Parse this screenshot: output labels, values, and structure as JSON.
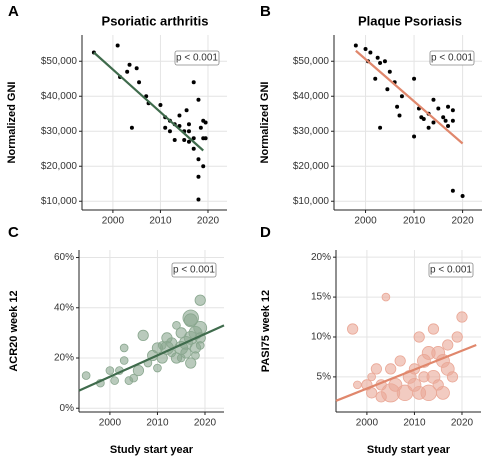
{
  "chart_data": [
    {
      "type": "scatter",
      "panel_label": "A",
      "title": "Psoriatic arthritis",
      "y_label": "Normalized GNI",
      "annotation": "p < 0.001",
      "xlim": [
        1993.5,
        2024
      ],
      "xticks": [
        2000,
        2010,
        2020
      ],
      "ylim": [
        7500,
        57500
      ],
      "yticks": [
        {
          "value": 10000,
          "label": "$10,000"
        },
        {
          "value": 20000,
          "label": "$20,000"
        },
        {
          "value": 30000,
          "label": "$30,000"
        },
        {
          "value": 40000,
          "label": "$40,000"
        },
        {
          "value": 50000,
          "label": "$50,000"
        }
      ],
      "grid": true,
      "series": [
        {
          "color": "#000000",
          "x": [
            1996,
            2001,
            2001.5,
            2003,
            2003.5,
            2004,
            2005,
            2005.5,
            2007,
            2007.5,
            2010,
            2011,
            2011,
            2012,
            2012,
            2013,
            2013,
            2014,
            2014,
            2015,
            2015,
            2015.5,
            2016,
            2016,
            2016,
            2017,
            2017,
            2017,
            2018,
            2018,
            2018,
            2018,
            2018.5,
            2019,
            2019,
            2019,
            2019.5,
            2019.5
          ],
          "values": [
            52500,
            54500,
            45500,
            47000,
            49000,
            31000,
            48000,
            44000,
            40000,
            38000,
            37500,
            34000,
            31000,
            33000,
            30000,
            32000,
            27500,
            31500,
            34500,
            30000,
            27500,
            36000,
            32000,
            30000,
            27000,
            44000,
            28000,
            25000,
            39000,
            22000,
            17000,
            10500,
            31000,
            33000,
            28000,
            20000,
            32500,
            28000
          ]
        }
      ],
      "trend": {
        "color": "#3f6b4c",
        "x": [
          1996,
          2019
        ],
        "values": [
          52500,
          24500
        ]
      }
    },
    {
      "type": "scatter",
      "panel_label": "B",
      "title": "Plaque Psoriasis",
      "y_label": "Normalized GNI",
      "annotation": "p < 0.001",
      "xlim": [
        1993.5,
        2024
      ],
      "xticks": [
        2000,
        2010,
        2020
      ],
      "ylim": [
        7500,
        57500
      ],
      "yticks": [
        {
          "value": 10000,
          "label": "$10,000"
        },
        {
          "value": 20000,
          "label": "$20,000"
        },
        {
          "value": 30000,
          "label": "$30,000"
        },
        {
          "value": 40000,
          "label": "$40,000"
        },
        {
          "value": 50000,
          "label": "$50,000"
        }
      ],
      "grid": true,
      "series": [
        {
          "color": "#000000",
          "x": [
            1998,
            2000,
            2000.5,
            2001,
            2002,
            2002.5,
            2003,
            2003,
            2004,
            2004.5,
            2005,
            2006,
            2006.5,
            2007,
            2007.5,
            2010,
            2010,
            2011,
            2011.5,
            2012,
            2013,
            2013,
            2014,
            2014,
            2015,
            2016,
            2016.5,
            2017,
            2017,
            2018,
            2018,
            2018,
            2020
          ],
          "values": [
            54500,
            53500,
            50000,
            52500,
            45000,
            51000,
            49500,
            31000,
            50000,
            42000,
            47000,
            44000,
            37000,
            34500,
            40000,
            28500,
            45000,
            36500,
            34000,
            33500,
            31000,
            35000,
            39000,
            32500,
            36500,
            34000,
            33000,
            37000,
            31500,
            13000,
            36000,
            33000,
            11500
          ]
        }
      ],
      "trend": {
        "color": "#e0876c",
        "x": [
          1998,
          2020
        ],
        "values": [
          53000,
          26500
        ]
      }
    },
    {
      "type": "bubble",
      "panel_label": "C",
      "y_label": "ACR20 week 12",
      "x_label": "Study start year",
      "annotation": "p < 0.001",
      "xlim": [
        1993.5,
        2024
      ],
      "xticks": [
        2000,
        2010,
        2020
      ],
      "ylim": [
        -1.5,
        63
      ],
      "yticks": [
        {
          "value": 0,
          "label": "0%"
        },
        {
          "value": 20,
          "label": "20%"
        },
        {
          "value": 40,
          "label": "40%"
        },
        {
          "value": 60,
          "label": "60%"
        }
      ],
      "grid": true,
      "series": [
        {
          "color": "#8aa78f",
          "x": [
            1995,
            1998,
            2000,
            2001,
            2002,
            2003,
            2003,
            2004,
            2005,
            2006,
            2007,
            2008,
            2009,
            2010,
            2010,
            2011,
            2011,
            2012,
            2012,
            2013,
            2013,
            2014,
            2014,
            2015,
            2015,
            2015,
            2016,
            2016,
            2017,
            2017,
            2017,
            2017,
            2018,
            2018,
            2018,
            2019,
            2019,
            2019,
            2019
          ],
          "values": [
            13,
            10,
            15,
            11,
            15,
            19,
            24,
            11,
            12,
            15,
            29,
            18,
            21,
            16,
            24,
            25,
            20,
            28,
            24,
            26,
            22,
            33,
            20,
            24,
            30,
            20,
            26,
            22,
            36,
            28,
            18,
            35,
            30,
            24,
            21,
            43,
            32,
            28,
            25
          ],
          "sizes": [
            3,
            3,
            3,
            3,
            3,
            3,
            3,
            3,
            3,
            4,
            4,
            3,
            4,
            3,
            4,
            3,
            4,
            4,
            5,
            4,
            3,
            3,
            4,
            5,
            4,
            3,
            5,
            4,
            6,
            5,
            4,
            5,
            5,
            4,
            3,
            4,
            5,
            4,
            3
          ]
        }
      ],
      "trend": {
        "color": "#3f6b4c",
        "x": [
          1993.5,
          2024
        ],
        "values": [
          7,
          33
        ]
      }
    },
    {
      "type": "bubble",
      "panel_label": "D",
      "y_label": "PASI75 week 12",
      "x_label": "Study start year",
      "annotation": "p < 0.001",
      "xlim": [
        1993.5,
        2024
      ],
      "xticks": [
        2000,
        2010,
        2020
      ],
      "ylim": [
        0.6,
        20.9
      ],
      "yticks": [
        {
          "value": 5,
          "label": "5%"
        },
        {
          "value": 10,
          "label": "10%"
        },
        {
          "value": 15,
          "label": "15%"
        },
        {
          "value": 20,
          "label": "20%"
        }
      ],
      "grid": true,
      "series": [
        {
          "color": "#eaa897",
          "x": [
            1997,
            1998,
            2000,
            2001,
            2001,
            2002,
            2003,
            2003,
            2004,
            2005,
            2005,
            2006,
            2007,
            2008,
            2009,
            2010,
            2010,
            2011,
            2011,
            2012,
            2012,
            2013,
            2013,
            2014,
            2014,
            2015,
            2015,
            2016,
            2016,
            2017,
            2017,
            2018,
            2019,
            2020
          ],
          "values": [
            11,
            4,
            4,
            3,
            5,
            6,
            4,
            2.5,
            15,
            3,
            6,
            4,
            7,
            3,
            5,
            4,
            6,
            10,
            3,
            7,
            5,
            8,
            3,
            11,
            5,
            8,
            4,
            7,
            3,
            9,
            6,
            5,
            10,
            12.5
          ],
          "sizes": [
            4,
            3,
            4,
            4,
            3,
            4,
            4,
            4,
            3,
            7,
            4,
            5,
            4,
            6,
            5,
            5,
            4,
            4,
            5,
            5,
            4,
            5,
            6,
            4,
            5,
            5,
            4,
            5,
            5,
            4,
            5,
            4,
            4,
            4
          ]
        }
      ],
      "trend": {
        "color": "#e0876c",
        "x": [
          1993.5,
          2023
        ],
        "values": [
          2,
          9
        ]
      }
    }
  ]
}
